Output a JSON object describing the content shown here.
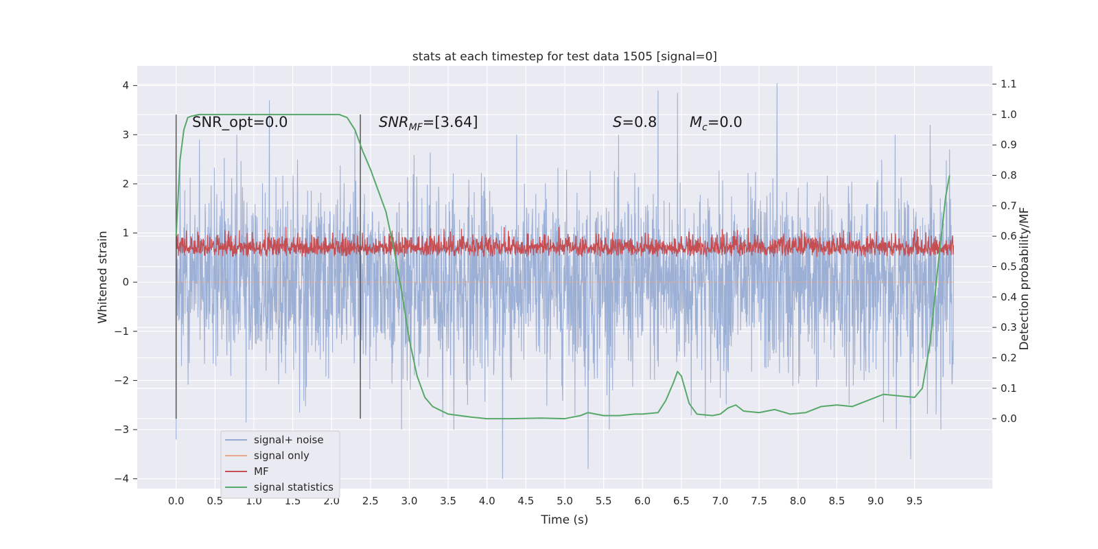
{
  "chart_data": {
    "type": "line",
    "title": "stats at each timestep for test data 1505 [signal=0]",
    "xlabel": "Time (s)",
    "ylabel": "Whitened strain",
    "ylabel_right": "Detection probability/MF",
    "xlim": [
      -0.5,
      10.5
    ],
    "ylim": [
      -4.2,
      4.4
    ],
    "ylim_right": [
      -0.23,
      1.16
    ],
    "x_ticks": [
      0.0,
      0.5,
      1.0,
      1.5,
      2.0,
      2.5,
      3.0,
      3.5,
      4.0,
      4.5,
      5.0,
      5.5,
      6.0,
      6.5,
      7.0,
      7.5,
      8.0,
      8.5,
      9.0,
      9.5
    ],
    "y_ticks": [
      4,
      3,
      2,
      1,
      0,
      -1,
      -2,
      -3,
      -4
    ],
    "y_tick_labels": [
      "4",
      "3",
      "2",
      "1",
      "0",
      "−1",
      "−2",
      "−3",
      "−4"
    ],
    "y_right_ticks": [
      1.1,
      1.0,
      0.9,
      0.8,
      0.7,
      0.6,
      0.5,
      0.4,
      0.3,
      0.2,
      0.1,
      0.0
    ],
    "grid": true,
    "legend_position": "lower-left",
    "colors": {
      "background": "#EAEAF2",
      "grid": "#FFFFFF",
      "signal_noise": "#98ACD3",
      "signal_only": "#E8A887",
      "mf": "#C44E52",
      "signal_statistics": "#55A868",
      "vline": "#555555"
    },
    "series": [
      {
        "name": "signal+ noise",
        "axis": "left",
        "color": "#98ACD3",
        "description_range": [
          -3.2,
          4.0
        ],
        "peaks_x": [
          0.0,
          0.05,
          0.3,
          1.2,
          2.3,
          4.2,
          5.3,
          6.2,
          6.45,
          7.73,
          9.25,
          9.45,
          9.7,
          9.95
        ],
        "peaks_y": [
          -3.2,
          2.4,
          2.9,
          3.7,
          3.1,
          -4.0,
          -3.8,
          3.9,
          3.85,
          4.05,
          3.0,
          -3.6,
          3.2,
          2.7
        ]
      },
      {
        "name": "signal only",
        "axis": "left",
        "color": "#E8A887",
        "x": [
          0.0,
          10.0
        ],
        "y": [
          0.0,
          0.0
        ]
      },
      {
        "name": "MF",
        "axis": "right",
        "color": "#C44E52",
        "range": [
          0.5,
          0.63
        ]
      },
      {
        "name": "signal statistics",
        "axis": "right",
        "color": "#55A868",
        "x": [
          0.0,
          0.05,
          0.1,
          0.15,
          0.2,
          0.3,
          0.5,
          1.0,
          1.5,
          2.0,
          2.1,
          2.2,
          2.3,
          2.4,
          2.5,
          2.6,
          2.7,
          2.8,
          2.9,
          3.0,
          3.1,
          3.2,
          3.3,
          3.5,
          3.8,
          4.0,
          4.3,
          4.7,
          5.0,
          5.2,
          5.3,
          5.5,
          5.7,
          5.9,
          6.0,
          6.2,
          6.3,
          6.4,
          6.45,
          6.5,
          6.6,
          6.7,
          6.9,
          7.0,
          7.1,
          7.2,
          7.3,
          7.5,
          7.7,
          7.9,
          8.1,
          8.3,
          8.5,
          8.7,
          8.9,
          9.1,
          9.3,
          9.5,
          9.6,
          9.7,
          9.8,
          9.9,
          9.95
        ],
        "y": [
          0.6,
          0.85,
          0.95,
          0.99,
          0.995,
          1.0,
          1.0,
          1.0,
          1.0,
          1.0,
          1.0,
          0.99,
          0.95,
          0.88,
          0.82,
          0.75,
          0.68,
          0.56,
          0.42,
          0.26,
          0.14,
          0.07,
          0.04,
          0.015,
          0.005,
          0.0,
          0.0,
          0.002,
          0.0,
          0.01,
          0.02,
          0.01,
          0.01,
          0.015,
          0.015,
          0.02,
          0.06,
          0.12,
          0.155,
          0.14,
          0.05,
          0.015,
          0.01,
          0.015,
          0.035,
          0.045,
          0.025,
          0.02,
          0.03,
          0.015,
          0.02,
          0.04,
          0.045,
          0.04,
          0.06,
          0.08,
          0.075,
          0.07,
          0.1,
          0.25,
          0.5,
          0.73,
          0.8
        ]
      }
    ],
    "vlines_x": [
      0.0,
      2.37
    ],
    "annotations": [
      {
        "key": "snr_opt",
        "text": "SNR_opt=0.0"
      },
      {
        "key": "snr_mf",
        "text": "SNRMF=[3.64]",
        "base": "SNR",
        "sub": "MF",
        "rest": "=[3.64]"
      },
      {
        "key": "s",
        "text": "S=0.8",
        "base": "S",
        "rest": "=0.8"
      },
      {
        "key": "mc",
        "text": "Mc=0.0",
        "base": "M",
        "sub": "c",
        "rest": "=0.0"
      }
    ]
  }
}
